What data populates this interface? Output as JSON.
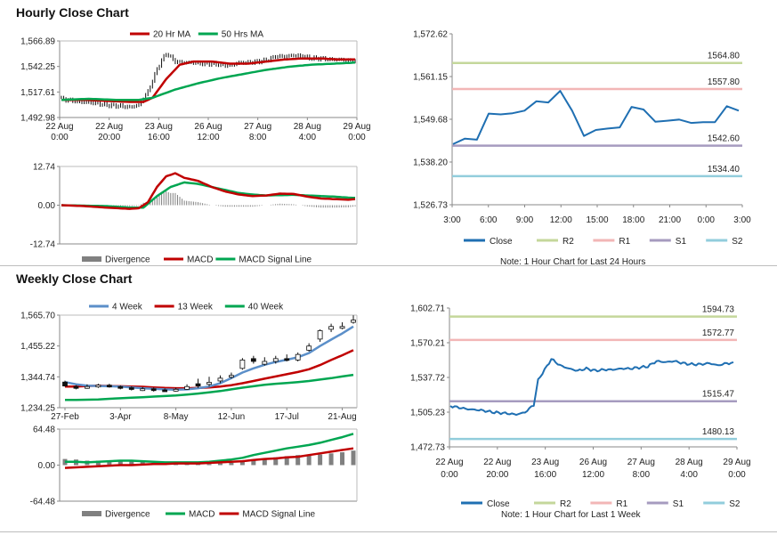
{
  "titles": {
    "hourly": "Hourly Close Chart",
    "weekly": "Weekly Close Chart"
  },
  "colors": {
    "red": "#c00000",
    "green": "#00a651",
    "blue": "#1f6fb2",
    "steel": "#5b8fc9",
    "gray": "#808080",
    "r2": "#c4d79b",
    "r1": "#f2b6b6",
    "s1": "#a69bbf",
    "s2": "#92cddc"
  },
  "chart_data": [
    {
      "id": "hourly_price",
      "type": "line",
      "title": "Hourly Close Chart",
      "legend": [
        "20 Hr MA",
        "50 Hrs MA"
      ],
      "yticks": [
        "1,566.89",
        "1,542.25",
        "1,517.61",
        "1,492.98"
      ],
      "ylim": [
        1492.98,
        1566.89
      ],
      "xticks": [
        [
          "22 Aug",
          "0:00"
        ],
        [
          "22 Aug",
          "20:00"
        ],
        [
          "23 Aug",
          "16:00"
        ],
        [
          "26 Aug",
          "12:00"
        ],
        [
          "27 Aug",
          "8:00"
        ],
        [
          "28 Aug",
          "4:00"
        ],
        [
          "29 Aug",
          "0:00"
        ]
      ],
      "n": 130,
      "candle_knots": [
        [
          0,
          1511
        ],
        [
          8,
          1508
        ],
        [
          14,
          1507
        ],
        [
          20,
          1505
        ],
        [
          26,
          1504
        ],
        [
          30,
          1503
        ],
        [
          34,
          1505
        ],
        [
          38,
          1518
        ],
        [
          41,
          1534
        ],
        [
          42,
          1540
        ],
        [
          44,
          1548
        ],
        [
          46,
          1555
        ],
        [
          50,
          1547
        ],
        [
          54,
          1546
        ],
        [
          58,
          1546
        ],
        [
          62,
          1545
        ],
        [
          66,
          1545
        ],
        [
          70,
          1544
        ],
        [
          74,
          1543
        ],
        [
          78,
          1546
        ],
        [
          82,
          1546
        ],
        [
          86,
          1547
        ],
        [
          90,
          1548
        ],
        [
          94,
          1552
        ],
        [
          98,
          1552
        ],
        [
          102,
          1553
        ],
        [
          106,
          1552
        ],
        [
          110,
          1550
        ],
        [
          114,
          1550
        ],
        [
          118,
          1549
        ],
        [
          122,
          1549
        ],
        [
          126,
          1548
        ],
        [
          129,
          1548
        ]
      ],
      "ma20_knots": [
        [
          0,
          1510
        ],
        [
          10,
          1510
        ],
        [
          20,
          1509
        ],
        [
          30,
          1508
        ],
        [
          36,
          1508
        ],
        [
          40,
          1512
        ],
        [
          46,
          1530
        ],
        [
          52,
          1544
        ],
        [
          58,
          1547
        ],
        [
          66,
          1547
        ],
        [
          74,
          1545
        ],
        [
          82,
          1545
        ],
        [
          90,
          1547
        ],
        [
          98,
          1549
        ],
        [
          106,
          1550
        ],
        [
          114,
          1550
        ],
        [
          122,
          1549
        ],
        [
          129,
          1549
        ]
      ],
      "ma50_knots": [
        [
          0,
          1510
        ],
        [
          12,
          1511
        ],
        [
          24,
          1510
        ],
        [
          34,
          1510
        ],
        [
          40,
          1512
        ],
        [
          50,
          1520
        ],
        [
          60,
          1526
        ],
        [
          70,
          1531
        ],
        [
          80,
          1535
        ],
        [
          90,
          1539
        ],
        [
          100,
          1542
        ],
        [
          110,
          1544
        ],
        [
          120,
          1545
        ],
        [
          129,
          1546
        ]
      ]
    },
    {
      "id": "hourly_macd",
      "type": "line",
      "legend": [
        "Divergence",
        "MACD",
        "MACD Signal Line"
      ],
      "yticks": [
        "12.74",
        "0.00",
        "-12.74"
      ],
      "ylim": [
        -12.74,
        12.74
      ],
      "n": 130,
      "macd_knots": [
        [
          0,
          0
        ],
        [
          10,
          -0.3
        ],
        [
          20,
          -0.8
        ],
        [
          30,
          -1.2
        ],
        [
          34,
          -1
        ],
        [
          38,
          1
        ],
        [
          42,
          6
        ],
        [
          46,
          9.5
        ],
        [
          50,
          10.5
        ],
        [
          54,
          9
        ],
        [
          60,
          8
        ],
        [
          66,
          6
        ],
        [
          72,
          4.5
        ],
        [
          78,
          3.5
        ],
        [
          84,
          3
        ],
        [
          90,
          3.2
        ],
        [
          96,
          3.8
        ],
        [
          102,
          3.7
        ],
        [
          108,
          2.8
        ],
        [
          114,
          2.2
        ],
        [
          120,
          2
        ],
        [
          126,
          1.8
        ],
        [
          129,
          2
        ]
      ],
      "signal_knots": [
        [
          0,
          0
        ],
        [
          20,
          -0.3
        ],
        [
          30,
          -0.8
        ],
        [
          36,
          -0.8
        ],
        [
          42,
          3
        ],
        [
          48,
          6
        ],
        [
          54,
          7.5
        ],
        [
          60,
          7
        ],
        [
          66,
          6
        ],
        [
          72,
          5
        ],
        [
          78,
          4
        ],
        [
          84,
          3.5
        ],
        [
          90,
          3.2
        ],
        [
          96,
          3.3
        ],
        [
          102,
          3.4
        ],
        [
          108,
          3.2
        ],
        [
          114,
          3
        ],
        [
          120,
          2.8
        ],
        [
          126,
          2.5
        ],
        [
          129,
          2.4
        ]
      ]
    },
    {
      "id": "hourly_pivot",
      "type": "line",
      "yticks": [
        "1,572.62",
        "1,561.15",
        "1,549.68",
        "1,538.20",
        "1,526.73"
      ],
      "ylim": [
        1526.73,
        1572.62
      ],
      "xticks": [
        "3:00",
        "6:00",
        "9:00",
        "12:00",
        "15:00",
        "18:00",
        "21:00",
        "0:00",
        "3:00"
      ],
      "close": [
        1543.0,
        1544.5,
        1544.2,
        1551.2,
        1551.0,
        1551.3,
        1552.0,
        1554.5,
        1554.2,
        1557.3,
        1552.0,
        1545.2,
        1546.8,
        1547.2,
        1547.5,
        1553.0,
        1552.3,
        1549.0,
        1549.3,
        1549.6,
        1548.7,
        1548.9,
        1548.9,
        1553.2,
        1552.0
      ],
      "levels": [
        {
          "name": "R2",
          "value": 1564.8,
          "label": "1564.80"
        },
        {
          "name": "R1",
          "value": 1557.8,
          "label": "1557.80"
        },
        {
          "name": "S1",
          "value": 1542.6,
          "label": "1542.60"
        },
        {
          "name": "S2",
          "value": 1534.4,
          "label": "1534.40"
        }
      ],
      "legend": [
        "Close",
        "R2",
        "R1",
        "S1",
        "S2"
      ],
      "note": "Note: 1 Hour Chart for Last 24 Hours"
    },
    {
      "id": "weekly_price",
      "type": "line",
      "title": "Weekly Close Chart",
      "legend": [
        "4 Week",
        "13 Week",
        "40 Week"
      ],
      "yticks": [
        "1,565.70",
        "1,455.22",
        "1,344.74",
        "1,234.25"
      ],
      "ylim": [
        1234.25,
        1565.7
      ],
      "xticks": [
        "27-Feb",
        "3-Apr",
        "8-May",
        "12-Jun",
        "17-Jul",
        "21-Aug"
      ],
      "n": 27,
      "candles": [
        [
          1326,
          1312,
          1331,
          1310
        ],
        [
          1310,
          1305,
          1315,
          1300
        ],
        [
          1305,
          1310,
          1318,
          1302
        ],
        [
          1310,
          1315,
          1320,
          1305
        ],
        [
          1315,
          1310,
          1320,
          1306
        ],
        [
          1310,
          1306,
          1314,
          1300
        ],
        [
          1306,
          1300,
          1310,
          1296
        ],
        [
          1300,
          1302,
          1308,
          1294
        ],
        [
          1302,
          1298,
          1306,
          1292
        ],
        [
          1298,
          1296,
          1303,
          1292
        ],
        [
          1296,
          1300,
          1306,
          1292
        ],
        [
          1300,
          1310,
          1318,
          1298
        ],
        [
          1320,
          1312,
          1338,
          1305
        ],
        [
          1318,
          1325,
          1345,
          1310
        ],
        [
          1330,
          1340,
          1350,
          1322
        ],
        [
          1345,
          1350,
          1360,
          1338
        ],
        [
          1375,
          1405,
          1412,
          1370
        ],
        [
          1410,
          1400,
          1420,
          1392
        ],
        [
          1390,
          1400,
          1415,
          1385
        ],
        [
          1400,
          1410,
          1420,
          1392
        ],
        [
          1410,
          1405,
          1425,
          1400
        ],
        [
          1405,
          1425,
          1432,
          1400
        ],
        [
          1440,
          1455,
          1465,
          1435
        ],
        [
          1480,
          1510,
          1515,
          1470
        ],
        [
          1515,
          1525,
          1535,
          1505
        ],
        [
          1520,
          1525,
          1540,
          1515
        ],
        [
          1540,
          1548,
          1565,
          1535
        ]
      ],
      "ma4": [
        1326,
        1318,
        1313,
        1312,
        1311,
        1310,
        1307,
        1304,
        1302,
        1300,
        1299,
        1300,
        1304,
        1310,
        1322,
        1340,
        1360,
        1375,
        1388,
        1398,
        1406,
        1415,
        1430,
        1455,
        1478,
        1500,
        1525
      ],
      "ma13": [
        1310,
        1310,
        1312,
        1313,
        1312,
        1311,
        1310,
        1309,
        1307,
        1305,
        1304,
        1304,
        1305,
        1307,
        1310,
        1315,
        1322,
        1330,
        1338,
        1346,
        1354,
        1362,
        1372,
        1387,
        1405,
        1422,
        1440
      ],
      "ma40": [
        1262,
        1262,
        1263,
        1264,
        1266,
        1268,
        1270,
        1272,
        1274,
        1276,
        1278,
        1281,
        1285,
        1289,
        1294,
        1300,
        1306,
        1311,
        1316,
        1320,
        1323,
        1326,
        1330,
        1335,
        1340,
        1346,
        1352
      ]
    },
    {
      "id": "weekly_macd",
      "type": "line",
      "legend": [
        "Divergence",
        "MACD",
        "MACD Signal Line"
      ],
      "yticks": [
        "64.48",
        "0.00",
        "-64.48"
      ],
      "ylim": [
        -64.48,
        64.48
      ],
      "n": 27,
      "macd": [
        6,
        6,
        5,
        6,
        7,
        8,
        8,
        7,
        6,
        5,
        5,
        5,
        5,
        6,
        8,
        10,
        13,
        18,
        22,
        26,
        30,
        33,
        36,
        40,
        45,
        50,
        56
      ],
      "signal": [
        -5,
        -4,
        -3,
        -2,
        -1,
        0,
        0,
        1,
        2,
        2,
        3,
        3,
        3,
        4,
        5,
        6,
        7,
        9,
        11,
        12,
        14,
        15,
        18,
        21,
        24,
        27,
        30
      ],
      "divergence": [
        11,
        10,
        8,
        8,
        8,
        8,
        8,
        6,
        4,
        3,
        2,
        2,
        2,
        2,
        3,
        4,
        6,
        9,
        11,
        14,
        16,
        18,
        18,
        19,
        21,
        23,
        26
      ]
    },
    {
      "id": "weekly_pivot",
      "type": "line",
      "yticks": [
        "1,602.71",
        "1,570.21",
        "1,537.72",
        "1,505.23",
        "1,472.73"
      ],
      "ylim": [
        1472.73,
        1602.71
      ],
      "xticks": [
        [
          "22 Aug",
          "0:00"
        ],
        [
          "22 Aug",
          "20:00"
        ],
        [
          "23 Aug",
          "16:00"
        ],
        [
          "26 Aug",
          "12:00"
        ],
        [
          "27 Aug",
          "8:00"
        ],
        [
          "28 Aug",
          "4:00"
        ],
        [
          "29 Aug",
          "0:00"
        ]
      ],
      "n": 130,
      "close_knots": [
        [
          0,
          1511
        ],
        [
          8,
          1508
        ],
        [
          14,
          1507
        ],
        [
          20,
          1505
        ],
        [
          26,
          1504
        ],
        [
          30,
          1503
        ],
        [
          34,
          1505
        ],
        [
          38,
          1512
        ],
        [
          40,
          1535
        ],
        [
          42,
          1542
        ],
        [
          44,
          1548
        ],
        [
          46,
          1555
        ],
        [
          50,
          1549
        ],
        [
          54,
          1546
        ],
        [
          58,
          1544
        ],
        [
          62,
          1546
        ],
        [
          66,
          1544
        ],
        [
          70,
          1545
        ],
        [
          74,
          1545
        ],
        [
          78,
          1546
        ],
        [
          82,
          1546
        ],
        [
          86,
          1547
        ],
        [
          90,
          1548
        ],
        [
          94,
          1553
        ],
        [
          98,
          1552
        ],
        [
          102,
          1553
        ],
        [
          106,
          1551
        ],
        [
          110,
          1550
        ],
        [
          114,
          1550
        ],
        [
          118,
          1551
        ],
        [
          122,
          1549
        ],
        [
          126,
          1551
        ],
        [
          129,
          1551
        ]
      ],
      "levels": [
        {
          "name": "R2",
          "value": 1594.73,
          "label": "1594.73"
        },
        {
          "name": "R1",
          "value": 1572.77,
          "label": "1572.77"
        },
        {
          "name": "S1",
          "value": 1515.47,
          "label": "1515.47"
        },
        {
          "name": "S2",
          "value": 1480.13,
          "label": "1480.13"
        }
      ],
      "legend": [
        "Close",
        "R2",
        "R1",
        "S1",
        "S2"
      ],
      "note": "Note: 1 Hour Chart for Last 1 Week"
    }
  ]
}
